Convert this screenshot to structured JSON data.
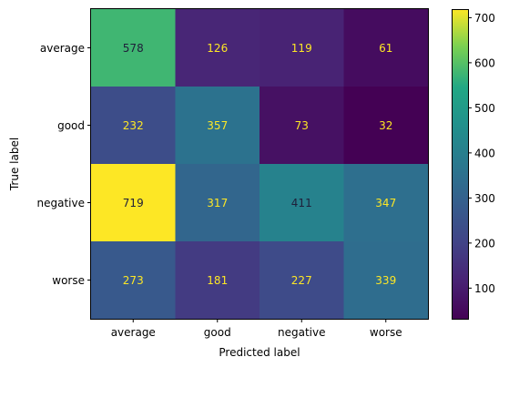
{
  "chart_data": {
    "type": "heatmap",
    "title": "",
    "xlabel": "Predicted label",
    "ylabel": "True label",
    "x_categories": [
      "average",
      "good",
      "negative",
      "worse"
    ],
    "y_categories": [
      "average",
      "good",
      "negative",
      "worse"
    ],
    "values": [
      [
        578,
        126,
        119,
        61
      ],
      [
        232,
        357,
        73,
        32
      ],
      [
        719,
        317,
        411,
        347
      ],
      [
        273,
        181,
        227,
        339
      ]
    ],
    "colormap": "viridis",
    "colorbar": {
      "min": 32,
      "max": 719,
      "ticks": [
        100,
        200,
        300,
        400,
        500,
        600,
        700
      ]
    },
    "cell_text_colors": {
      "light": "#fde725",
      "dark": "#1f1f3a"
    }
  }
}
